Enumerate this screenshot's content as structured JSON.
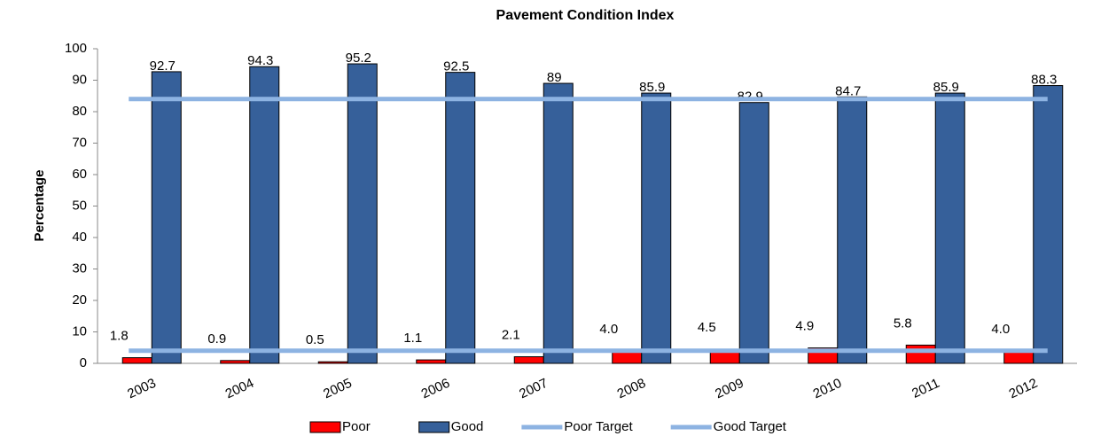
{
  "chart_data": {
    "type": "bar",
    "title": "Pavement Condition Index",
    "y_label": "Percentage",
    "categories": [
      "2003",
      "2004",
      "2005",
      "2006",
      "2007",
      "2008",
      "2009",
      "2010",
      "2011",
      "2012"
    ],
    "series": [
      {
        "name": "Poor",
        "type": "bar",
        "color": "#ff0000",
        "values": [
          1.8,
          0.9,
          0.5,
          1.1,
          2.1,
          4.0,
          4.5,
          4.9,
          5.8,
          4.0
        ],
        "value_labels": [
          "1.8",
          "0.9",
          "0.5",
          "1.1",
          "2.1",
          "4.0",
          "4.5",
          "4.9",
          "5.8",
          "4.0"
        ]
      },
      {
        "name": "Good",
        "type": "bar",
        "color": "#36609a",
        "values": [
          92.7,
          94.3,
          95.2,
          92.5,
          89,
          85.9,
          82.9,
          84.7,
          85.9,
          88.3
        ]
      },
      {
        "name": "Poor Target",
        "type": "line",
        "color": "#8db3e2",
        "values": [
          4,
          4,
          4,
          4,
          4,
          4,
          4,
          4,
          4,
          4
        ]
      },
      {
        "name": "Good Target",
        "type": "line",
        "color": "#8db3e2",
        "values": [
          84,
          84,
          84,
          84,
          84,
          84,
          84,
          84,
          84,
          84
        ]
      }
    ],
    "ylim": [
      0,
      100
    ],
    "yticks": [
      0,
      10,
      20,
      30,
      40,
      50,
      60,
      70,
      80,
      90,
      100
    ],
    "grid": false,
    "legend": "bottom"
  }
}
